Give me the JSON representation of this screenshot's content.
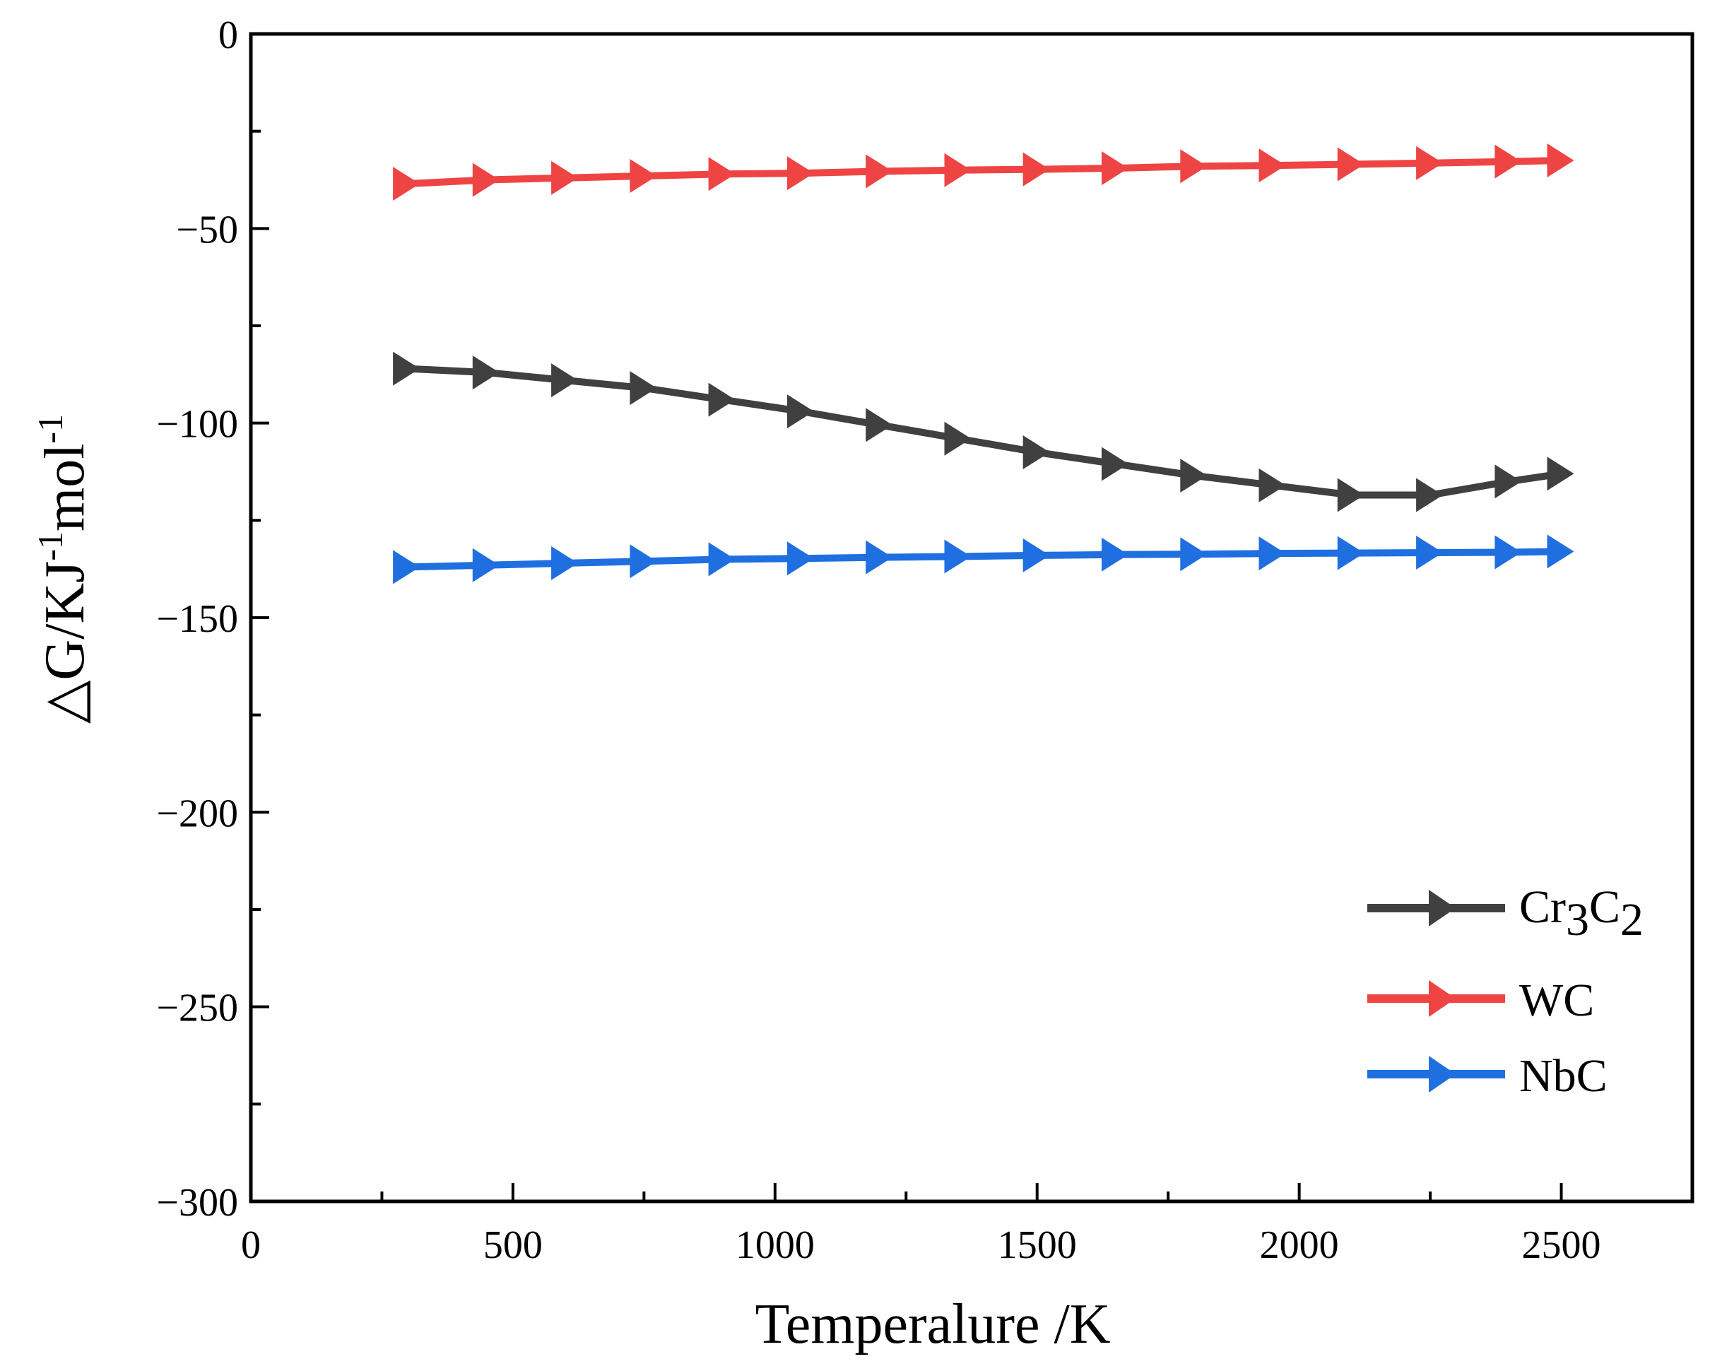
{
  "chart_data": {
    "type": "line",
    "title": "",
    "xlabel": "Temperalure /K",
    "ylabel_main": "△G/KJ",
    "ylabel_sup1": "-1",
    "ylabel_mid": "mol",
    "ylabel_sup2": "-1",
    "xlim": [
      0,
      2750
    ],
    "ylim": [
      -300,
      0
    ],
    "xticks": [
      0,
      500,
      1000,
      1500,
      2000,
      2500
    ],
    "yticks": [
      0,
      -50,
      -100,
      -150,
      -200,
      -250,
      -300
    ],
    "xtick_labels": [
      "0",
      "500",
      "1000",
      "1500",
      "2000",
      "2500"
    ],
    "ytick_labels": [
      "0",
      "−50",
      "−100",
      "−150",
      "−200",
      "−250",
      "−300"
    ],
    "x": [
      298,
      450,
      600,
      750,
      900,
      1050,
      1200,
      1350,
      1500,
      1650,
      1800,
      1950,
      2100,
      2250,
      2400,
      2500
    ],
    "series": [
      {
        "name": "Cr3C2",
        "label_main": "Cr",
        "label_sub1": "3",
        "label_mid": "C",
        "label_sub2": "2",
        "color": "#404040",
        "values": [
          -86,
          -87,
          -89,
          -91,
          -94,
          -97,
          -100.5,
          -104,
          -107.5,
          -110.5,
          -113.5,
          -116,
          -118.5,
          -118.5,
          -115,
          -113
        ]
      },
      {
        "name": "WC",
        "label_main": "WC",
        "color": "#ef4444",
        "values": [
          -38.5,
          -37.5,
          -37,
          -36.5,
          -36,
          -35.8,
          -35.3,
          -35,
          -34.8,
          -34.5,
          -34,
          -33.8,
          -33.5,
          -33.2,
          -32.8,
          -32.5
        ]
      },
      {
        "name": "NbC",
        "label_main": "NbC",
        "color": "#1f6fe0",
        "values": [
          -137,
          -136.5,
          -136,
          -135.5,
          -135,
          -134.8,
          -134.5,
          -134.3,
          -134,
          -133.8,
          -133.7,
          -133.5,
          -133.4,
          -133.3,
          -133.2,
          -133
        ]
      }
    ],
    "legend_position": "bottom-right"
  }
}
